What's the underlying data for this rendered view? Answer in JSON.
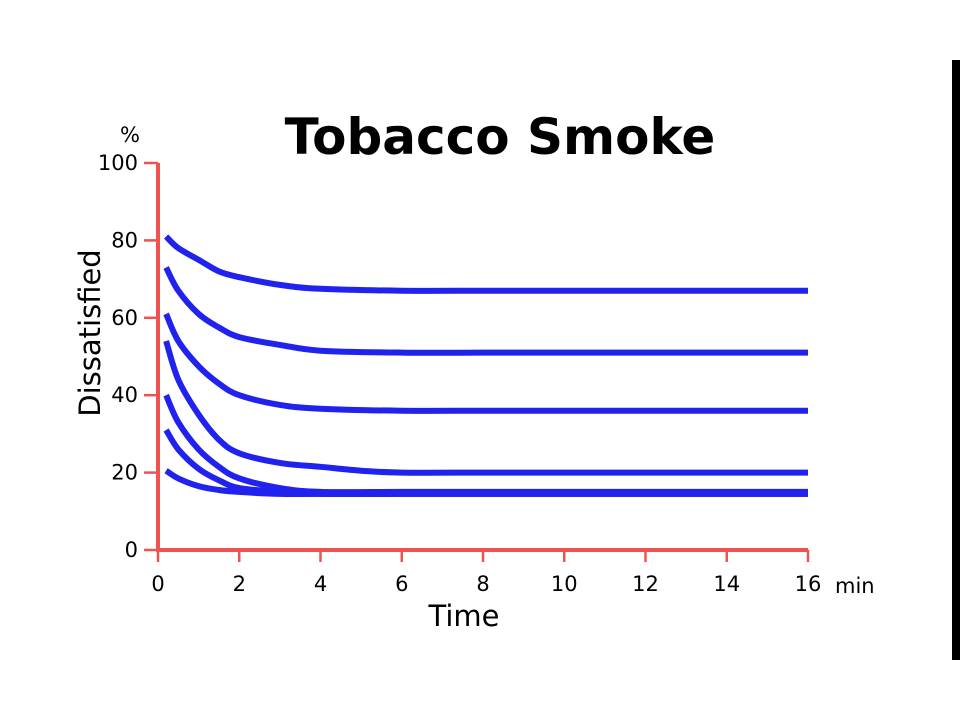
{
  "chart_data": {
    "type": "line",
    "title": "Tobacco Smoke",
    "xlabel": "Time",
    "ylabel": "Dissatisfied",
    "x_unit": "min",
    "y_unit": "%",
    "xlim": [
      0,
      16
    ],
    "ylim": [
      0,
      100
    ],
    "x_ticks": [
      "0",
      "2",
      "4",
      "6",
      "8",
      "10",
      "12",
      "14",
      "16"
    ],
    "y_ticks": [
      "0",
      "20",
      "40",
      "60",
      "80",
      "100"
    ],
    "grid": false,
    "colors": {
      "axis": "#ef5350",
      "series": "#2222ee",
      "frame": "#000000"
    },
    "series": [
      {
        "x": [
          0.2,
          0.5,
          1,
          1.5,
          2,
          3,
          4,
          6,
          8,
          10,
          12,
          14,
          16
        ],
        "y": [
          81,
          78,
          75,
          72,
          70.5,
          68.5,
          67.5,
          67,
          67,
          67,
          67,
          67,
          67
        ]
      },
      {
        "x": [
          0.2,
          0.5,
          1,
          1.5,
          2,
          3,
          4,
          6,
          8,
          10,
          12,
          14,
          16
        ],
        "y": [
          73,
          67,
          61,
          57.5,
          55,
          53,
          51.5,
          51,
          51,
          51,
          51,
          51,
          51
        ]
      },
      {
        "x": [
          0.2,
          0.5,
          1,
          1.5,
          2,
          3,
          4,
          6,
          8,
          10,
          12,
          14,
          16
        ],
        "y": [
          61,
          54,
          47.5,
          43,
          40,
          37.5,
          36.5,
          36,
          36,
          36,
          36,
          36,
          36
        ]
      },
      {
        "x": [
          0.2,
          0.5,
          1,
          1.5,
          2,
          3,
          4,
          5,
          6,
          8,
          10,
          12,
          14,
          16
        ],
        "y": [
          54,
          44,
          35,
          28.5,
          25,
          22.5,
          21.5,
          20.5,
          20,
          20,
          20,
          20,
          20,
          20
        ]
      },
      {
        "x": [
          0.2,
          0.5,
          1,
          1.5,
          2,
          3,
          4,
          6,
          8,
          10,
          12,
          14,
          16
        ],
        "y": [
          40,
          33,
          26,
          21.5,
          18.5,
          16,
          15,
          15,
          15,
          15,
          15,
          15,
          15
        ]
      },
      {
        "x": [
          0.2,
          0.5,
          1,
          1.5,
          2,
          3,
          4,
          6,
          8,
          10,
          12,
          14,
          16
        ],
        "y": [
          31,
          26,
          21,
          18,
          16,
          15,
          14.5,
          14.5,
          14.5,
          14.5,
          14.5,
          14.5,
          14.5
        ]
      },
      {
        "x": [
          0.2,
          0.5,
          1,
          1.5,
          2,
          3,
          4,
          6,
          8,
          10,
          12,
          14,
          16
        ],
        "y": [
          20.5,
          18.5,
          16.5,
          15.5,
          15,
          14.5,
          14.5,
          14.5,
          14.5,
          14.5,
          14.5,
          14.5,
          14.5
        ]
      }
    ]
  }
}
